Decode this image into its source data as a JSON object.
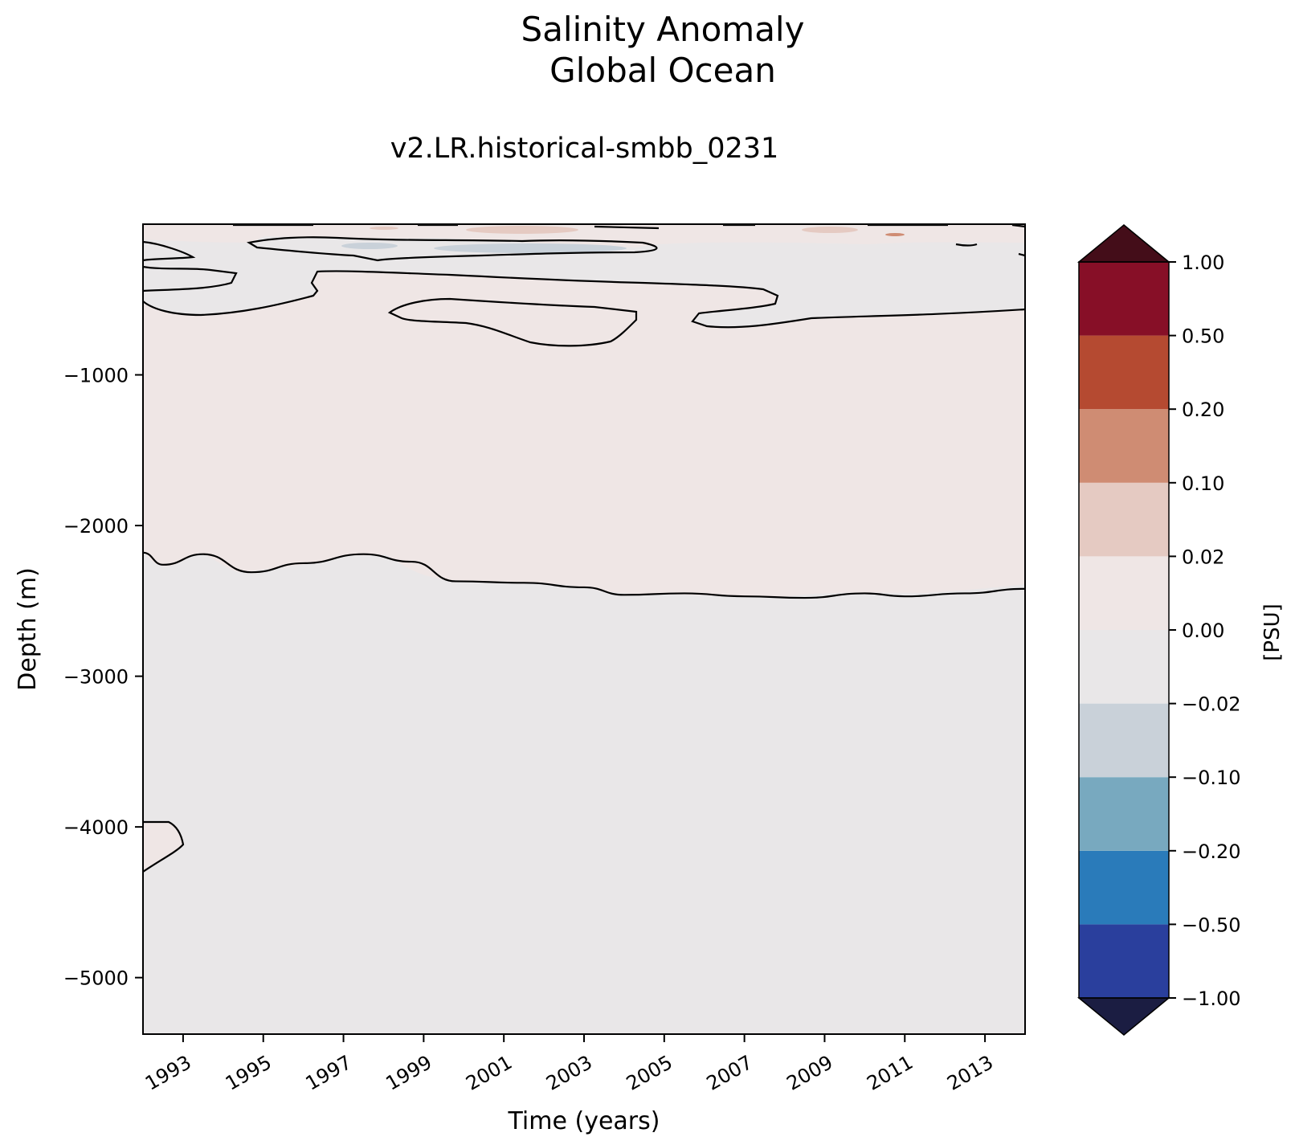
{
  "chart_data": {
    "type": "contourf",
    "title_line1": "Salinity Anomaly",
    "title_line2": "Global Ocean",
    "subtitle": "v2.LR.historical-smbb_0231",
    "xlabel": "Time (years)",
    "ylabel": "Depth (m)",
    "xlim": [
      1992,
      2014
    ],
    "ylim": [
      -5375,
      0
    ],
    "x_ticks": [
      1993,
      1995,
      1997,
      1999,
      2001,
      2003,
      2005,
      2007,
      2009,
      2011,
      2013
    ],
    "y_ticks": [
      -1000,
      -2000,
      -3000,
      -4000,
      -5000
    ],
    "colorbar": {
      "label": "[PSU]",
      "levels": [
        -1.0,
        -0.5,
        -0.2,
        -0.1,
        -0.02,
        0.0,
        0.02,
        0.1,
        0.2,
        0.5,
        1.0
      ],
      "tick_labels": [
        "−1.00",
        "−0.50",
        "−0.20",
        "−0.10",
        "−0.02",
        "0.00",
        "0.02",
        "0.10",
        "0.20",
        "0.50",
        "1.00"
      ],
      "colors": [
        "#2a3f9d",
        "#2a7bba",
        "#78a9bf",
        "#c9d1d9",
        "#e9e7e8",
        "#efe6e5",
        "#e5cac2",
        "#cf8c73",
        "#b54a31",
        "#870f27"
      ],
      "under_color": "#1b1d42",
      "over_color": "#440d19",
      "extend": "both"
    },
    "regions": {
      "positive_fill": "#efe6e5",
      "negative_fill": "#e9e7e8",
      "weak_negative_fill": "#c9d1d9",
      "weak_positive_fill": "#e5cac2"
    },
    "zero_contour_depth": [
      {
        "x": 1992.0,
        "y": -2180
      },
      {
        "x": 1992.5,
        "y": -2260
      },
      {
        "x": 1993.5,
        "y": -2190
      },
      {
        "x": 1994.7,
        "y": -2310
      },
      {
        "x": 1996.0,
        "y": -2250
      },
      {
        "x": 1997.5,
        "y": -2190
      },
      {
        "x": 1998.7,
        "y": -2240
      },
      {
        "x": 1999.8,
        "y": -2370
      },
      {
        "x": 2001.5,
        "y": -2380
      },
      {
        "x": 2003.0,
        "y": -2410
      },
      {
        "x": 2004.0,
        "y": -2460
      },
      {
        "x": 2005.5,
        "y": -2450
      },
      {
        "x": 2007.0,
        "y": -2470
      },
      {
        "x": 2008.5,
        "y": -2480
      },
      {
        "x": 2010.0,
        "y": -2450
      },
      {
        "x": 2011.0,
        "y": -2470
      },
      {
        "x": 2012.5,
        "y": -2450
      },
      {
        "x": 2014.0,
        "y": -2420
      }
    ]
  }
}
